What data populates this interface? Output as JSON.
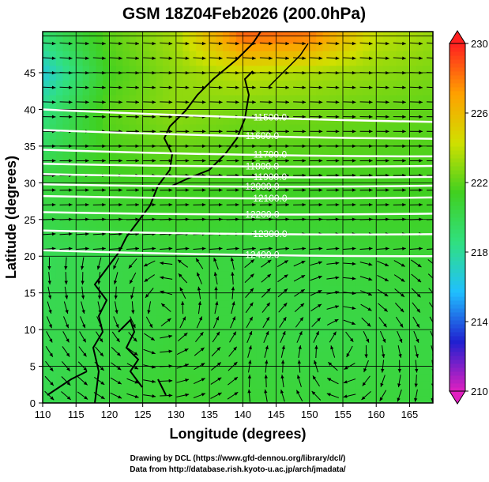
{
  "chart_data": {
    "type": "heatmap",
    "title": "GSM 18Z04Feb2026 (200.0hPa)",
    "xlabel": "Longitude (degrees)",
    "ylabel": "Latitude  (degrees)",
    "xlim": [
      110,
      168.5
    ],
    "ylim": [
      0,
      50.6
    ],
    "xticks": [
      "110",
      "115",
      "120",
      "125",
      "130",
      "135",
      "140",
      "145",
      "150",
      "155",
      "160",
      "165"
    ],
    "yticks": [
      "0",
      "5",
      "10",
      "15",
      "20",
      "25",
      "30",
      "35",
      "40",
      "45"
    ],
    "colorbar": {
      "min": 210,
      "max": 230,
      "ticks": [
        "210",
        "214",
        "218",
        "222",
        "226",
        "230"
      ],
      "colors": [
        "#e020c0",
        "#2020d0",
        "#20c0ff",
        "#30e080",
        "#40d020",
        "#d0e000",
        "#ffa000",
        "#ff2020"
      ]
    },
    "temperature_grid": {
      "lons": [
        110,
        120,
        130,
        140,
        150,
        160,
        170
      ],
      "lats": [
        0,
        10,
        20,
        30,
        40,
        45,
        50
      ],
      "values": [
        [
          220.0,
          220.5,
          221.0,
          220.8,
          220.6,
          220.6,
          220.5
        ],
        [
          220.0,
          220.3,
          220.6,
          220.5,
          220.2,
          220.3,
          220.4
        ],
        [
          219.8,
          220.2,
          220.6,
          220.4,
          220.5,
          220.7,
          220.8
        ],
        [
          220.5,
          221.3,
          221.6,
          221.5,
          221.4,
          221.5,
          221.5
        ],
        [
          218.5,
          222.0,
          223.0,
          222.5,
          222.5,
          222.2,
          222.0
        ],
        [
          216.5,
          221.5,
          223.0,
          224.0,
          223.5,
          223.0,
          222.5
        ],
        [
          219.0,
          222.0,
          223.5,
          228.5,
          228.0,
          224.0,
          223.0
        ]
      ]
    },
    "contours": [
      {
        "label": "11500.0",
        "lat_west": 40.0,
        "lat_east": 38.3
      },
      {
        "label": "11600.0",
        "lat_west": 37.2,
        "lat_east": 36.0
      },
      {
        "label": "11700.0",
        "lat_west": 34.5,
        "lat_east": 33.6
      },
      {
        "label": "11800.0",
        "lat_west": 32.6,
        "lat_east": 32.3
      },
      {
        "label": "11900.0",
        "lat_west": 31.2,
        "lat_east": 30.8
      },
      {
        "label": "12000.0",
        "lat_west": 29.8,
        "lat_east": 29.6
      },
      {
        "label": "12100.0",
        "lat_west": 28.2,
        "lat_east": 28.0
      },
      {
        "label": "12200.0",
        "lat_west": 26.0,
        "lat_east": 25.8
      },
      {
        "label": "12300.0",
        "lat_west": 23.5,
        "lat_east": 23.0
      },
      {
        "label": "12400.0",
        "lat_west": 20.8,
        "lat_east": 20.0
      }
    ],
    "wind": "westerly jet north of 20N, anticyclonic/cyclonic eddies south of 20N"
  },
  "credits": {
    "line1": "Drawing by DCL (https://www.gfd-dennou.org/library/dcl/)",
    "line2": "Data from http://database.rish.kyoto-u.ac.jp/arch/jmadata/"
  }
}
